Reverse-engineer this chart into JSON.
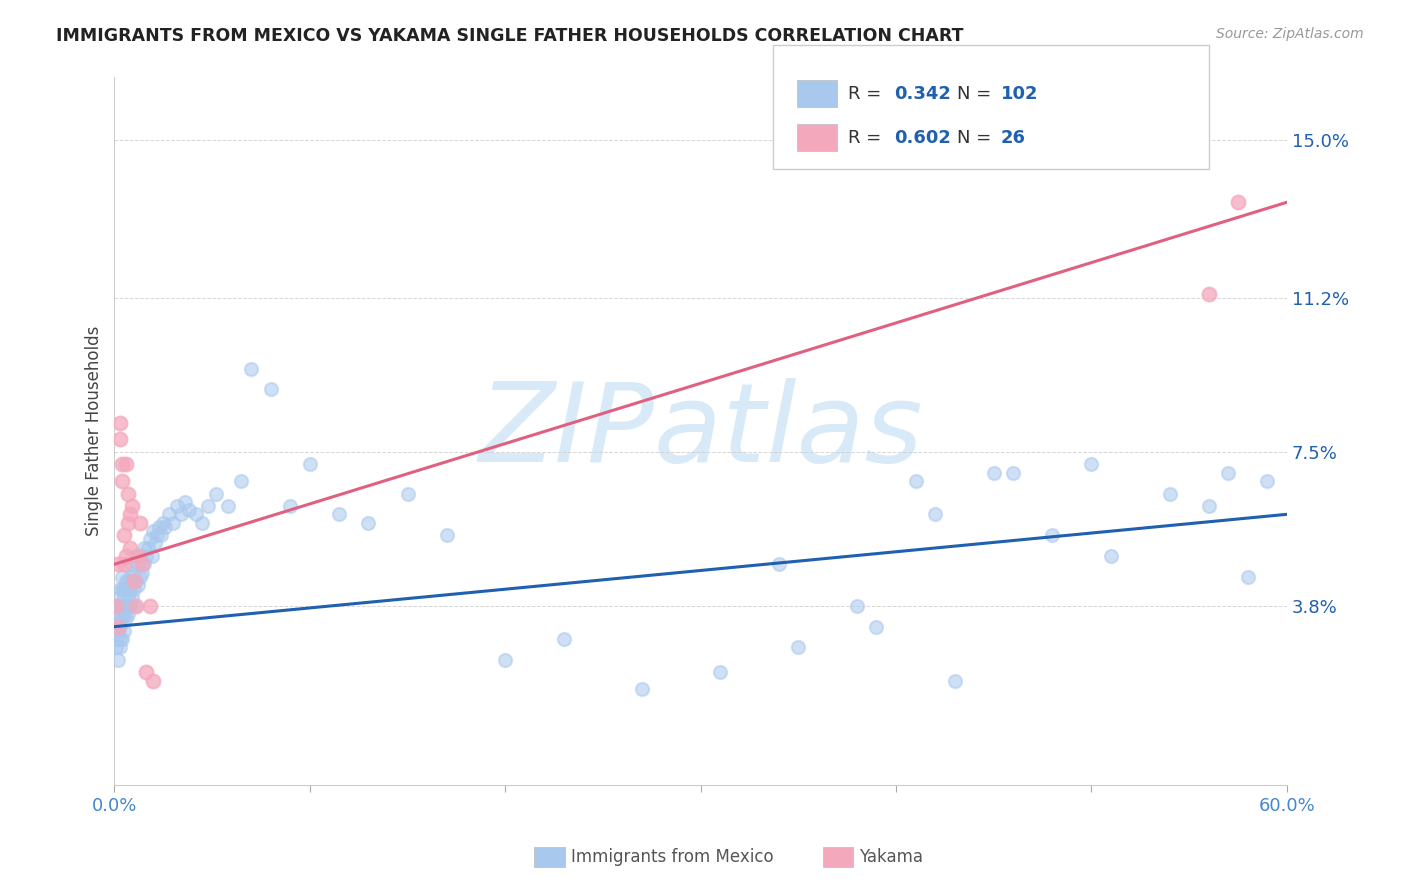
{
  "title": "IMMIGRANTS FROM MEXICO VS YAKAMA SINGLE FATHER HOUSEHOLDS CORRELATION CHART",
  "source": "Source: ZipAtlas.com",
  "ylabel": "Single Father Households",
  "yticks": [
    "3.8%",
    "7.5%",
    "11.2%",
    "15.0%"
  ],
  "ytick_vals": [
    0.038,
    0.075,
    0.112,
    0.15
  ],
  "xlim": [
    0.0,
    0.6
  ],
  "ylim": [
    -0.005,
    0.165
  ],
  "legend_blue_R": "0.342",
  "legend_blue_N": "102",
  "legend_pink_R": "0.602",
  "legend_pink_N": "26",
  "blue_color": "#a8c8ee",
  "pink_color": "#f4a8bc",
  "blue_line_color": "#2060b0",
  "pink_line_color": "#e06080",
  "watermark_color": "#d8eaf8",
  "blue_scatter_x": [
    0.001,
    0.001,
    0.001,
    0.002,
    0.002,
    0.002,
    0.002,
    0.002,
    0.003,
    0.003,
    0.003,
    0.003,
    0.003,
    0.003,
    0.004,
    0.004,
    0.004,
    0.004,
    0.004,
    0.005,
    0.005,
    0.005,
    0.005,
    0.005,
    0.006,
    0.006,
    0.006,
    0.006,
    0.007,
    0.007,
    0.007,
    0.007,
    0.008,
    0.008,
    0.008,
    0.009,
    0.009,
    0.009,
    0.01,
    0.01,
    0.01,
    0.011,
    0.011,
    0.012,
    0.012,
    0.013,
    0.013,
    0.014,
    0.015,
    0.015,
    0.016,
    0.017,
    0.018,
    0.019,
    0.02,
    0.021,
    0.022,
    0.023,
    0.024,
    0.025,
    0.026,
    0.028,
    0.03,
    0.032,
    0.034,
    0.036,
    0.038,
    0.042,
    0.045,
    0.048,
    0.052,
    0.058,
    0.065,
    0.07,
    0.08,
    0.09,
    0.1,
    0.115,
    0.13,
    0.15,
    0.17,
    0.2,
    0.23,
    0.27,
    0.31,
    0.35,
    0.39,
    0.42,
    0.45,
    0.48,
    0.51,
    0.54,
    0.56,
    0.57,
    0.58,
    0.59,
    0.34,
    0.41,
    0.46,
    0.5,
    0.38,
    0.43
  ],
  "blue_scatter_y": [
    0.033,
    0.03,
    0.028,
    0.035,
    0.038,
    0.032,
    0.04,
    0.025,
    0.036,
    0.038,
    0.033,
    0.042,
    0.028,
    0.03,
    0.038,
    0.042,
    0.035,
    0.03,
    0.045,
    0.04,
    0.036,
    0.042,
    0.038,
    0.032,
    0.044,
    0.038,
    0.042,
    0.035,
    0.04,
    0.044,
    0.038,
    0.036,
    0.042,
    0.045,
    0.038,
    0.044,
    0.04,
    0.048,
    0.042,
    0.046,
    0.038,
    0.044,
    0.05,
    0.043,
    0.048,
    0.045,
    0.05,
    0.046,
    0.048,
    0.052,
    0.05,
    0.052,
    0.054,
    0.05,
    0.056,
    0.053,
    0.055,
    0.057,
    0.055,
    0.058,
    0.057,
    0.06,
    0.058,
    0.062,
    0.06,
    0.063,
    0.061,
    0.06,
    0.058,
    0.062,
    0.065,
    0.062,
    0.068,
    0.095,
    0.09,
    0.062,
    0.072,
    0.06,
    0.058,
    0.065,
    0.055,
    0.025,
    0.03,
    0.018,
    0.022,
    0.028,
    0.033,
    0.06,
    0.07,
    0.055,
    0.05,
    0.065,
    0.062,
    0.07,
    0.045,
    0.068,
    0.048,
    0.068,
    0.07,
    0.072,
    0.038,
    0.02
  ],
  "pink_scatter_x": [
    0.001,
    0.002,
    0.002,
    0.003,
    0.003,
    0.004,
    0.004,
    0.005,
    0.005,
    0.006,
    0.006,
    0.007,
    0.007,
    0.008,
    0.008,
    0.009,
    0.01,
    0.011,
    0.012,
    0.013,
    0.014,
    0.016,
    0.018,
    0.02,
    0.56,
    0.575
  ],
  "pink_scatter_y": [
    0.038,
    0.033,
    0.048,
    0.082,
    0.078,
    0.072,
    0.068,
    0.055,
    0.048,
    0.072,
    0.05,
    0.065,
    0.058,
    0.06,
    0.052,
    0.062,
    0.044,
    0.038,
    0.05,
    0.058,
    0.048,
    0.022,
    0.038,
    0.02,
    0.113,
    0.135
  ],
  "blue_line_x": [
    0.0,
    0.6
  ],
  "blue_line_y": [
    0.033,
    0.06
  ],
  "pink_line_x": [
    0.0,
    0.6
  ],
  "pink_line_y": [
    0.048,
    0.135
  ]
}
